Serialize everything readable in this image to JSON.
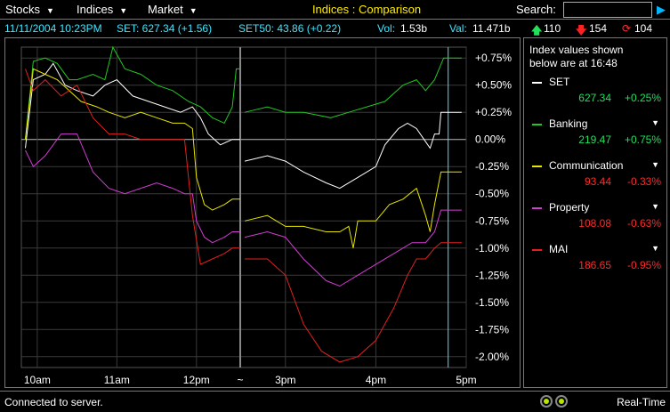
{
  "menubar": {
    "menus": [
      {
        "label": "Stocks"
      },
      {
        "label": "Indices"
      },
      {
        "label": "Market"
      }
    ],
    "title": "Indices : Comparison",
    "search_label": "Search:",
    "search_value": ""
  },
  "strip": {
    "datetime": "11/11/2004 10:23PM",
    "set": "SET: 627.34 (+1.56)",
    "set50": "SET50: 43.86 (+0.22)",
    "vol_label": "Vol:",
    "vol_value": "1.53b",
    "val_label": "Val:",
    "val_value": "11.471b",
    "advances": "110",
    "declines": "154",
    "unchanged": "104"
  },
  "panel": {
    "note_line1": "Index values shown",
    "note_line2": "below are at 16:48",
    "indices": [
      {
        "name": "SET",
        "value": "627.34",
        "change": "+0.25%",
        "color": "#ffffff",
        "value_color": "#21e05a",
        "has_dropdown": false
      },
      {
        "name": "Banking",
        "value": "219.47",
        "change": "+0.75%",
        "color": "#21c821",
        "value_color": "#21e05a",
        "has_dropdown": true
      },
      {
        "name": "Communication",
        "value": "93.44",
        "change": "-0.33%",
        "color": "#e6e600",
        "value_color": "#ff2a2a",
        "has_dropdown": true
      },
      {
        "name": "Property",
        "value": "108.08",
        "change": "-0.63%",
        "color": "#d23cd2",
        "value_color": "#ff2a2a",
        "has_dropdown": true
      },
      {
        "name": "MAI",
        "value": "186.65",
        "change": "-0.95%",
        "color": "#e02020",
        "value_color": "#ff2a2a",
        "has_dropdown": true
      }
    ]
  },
  "chart_data": {
    "type": "line",
    "title": "",
    "xlabel": "",
    "ylabel": "",
    "x_tick_labels": [
      "10am",
      "11am",
      "12pm",
      "~",
      "3pm",
      "3pm",
      "4pm",
      "5pm"
    ],
    "y_ticks": [
      0.75,
      0.5,
      0.25,
      0.0,
      -0.25,
      -0.5,
      -0.75,
      -1.0,
      -1.25,
      -1.5,
      -1.75,
      -2.0
    ],
    "y_tick_labels": [
      "+0.75%",
      "+0.50%",
      "+0.25%",
      "0.00%",
      "-0.25%",
      "-0.50%",
      "-0.75%",
      "-1.00%",
      "-1.25%",
      "-1.50%",
      "-1.75%",
      "-2.00%"
    ],
    "ylim": [
      -2.1,
      0.85
    ],
    "x_range_hours": [
      9.8,
      17.0
    ],
    "session_break_hour": 12.55,
    "session_resume_hour": 14.5,
    "grid": true,
    "series": [
      {
        "name": "SET",
        "color": "#ffffff",
        "points": [
          [
            9.85,
            -0.08
          ],
          [
            9.95,
            0.55
          ],
          [
            10.1,
            0.6
          ],
          [
            10.2,
            0.7
          ],
          [
            10.35,
            0.5
          ],
          [
            10.5,
            0.45
          ],
          [
            10.7,
            0.4
          ],
          [
            10.85,
            0.5
          ],
          [
            11.0,
            0.55
          ],
          [
            11.2,
            0.4
          ],
          [
            11.4,
            0.35
          ],
          [
            11.6,
            0.3
          ],
          [
            11.8,
            0.25
          ],
          [
            11.95,
            0.3
          ],
          [
            12.05,
            0.2
          ],
          [
            12.15,
            0.05
          ],
          [
            12.3,
            -0.05
          ],
          [
            12.45,
            0.0
          ],
          [
            12.55,
            0.0
          ],
          [
            14.55,
            -0.2
          ],
          [
            14.8,
            -0.15
          ],
          [
            15.0,
            -0.2
          ],
          [
            15.2,
            -0.3
          ],
          [
            15.45,
            -0.4
          ],
          [
            15.6,
            -0.45
          ],
          [
            15.8,
            -0.35
          ],
          [
            16.0,
            -0.25
          ],
          [
            16.1,
            -0.05
          ],
          [
            16.25,
            0.1
          ],
          [
            16.35,
            0.15
          ],
          [
            16.45,
            0.1
          ],
          [
            16.55,
            -0.02
          ],
          [
            16.6,
            -0.08
          ],
          [
            16.65,
            0.05
          ],
          [
            16.7,
            0.05
          ],
          [
            16.72,
            0.25
          ],
          [
            16.95,
            0.25
          ]
        ]
      },
      {
        "name": "Banking",
        "color": "#21c821",
        "points": [
          [
            9.85,
            0.0
          ],
          [
            9.95,
            0.72
          ],
          [
            10.1,
            0.75
          ],
          [
            10.25,
            0.7
          ],
          [
            10.4,
            0.55
          ],
          [
            10.5,
            0.55
          ],
          [
            10.7,
            0.6
          ],
          [
            10.85,
            0.55
          ],
          [
            10.95,
            0.85
          ],
          [
            11.1,
            0.65
          ],
          [
            11.3,
            0.6
          ],
          [
            11.5,
            0.5
          ],
          [
            11.7,
            0.45
          ],
          [
            11.9,
            0.35
          ],
          [
            12.05,
            0.3
          ],
          [
            12.2,
            0.2
          ],
          [
            12.35,
            0.15
          ],
          [
            12.45,
            0.3
          ],
          [
            12.5,
            0.65
          ],
          [
            12.55,
            0.65
          ],
          [
            14.55,
            0.25
          ],
          [
            14.8,
            0.3
          ],
          [
            15.0,
            0.25
          ],
          [
            15.2,
            0.25
          ],
          [
            15.5,
            0.2
          ],
          [
            15.7,
            0.25
          ],
          [
            15.9,
            0.3
          ],
          [
            16.1,
            0.35
          ],
          [
            16.3,
            0.5
          ],
          [
            16.45,
            0.55
          ],
          [
            16.55,
            0.45
          ],
          [
            16.65,
            0.55
          ],
          [
            16.75,
            0.75
          ],
          [
            16.95,
            0.75
          ]
        ]
      },
      {
        "name": "Communication",
        "color": "#e6e600",
        "points": [
          [
            9.85,
            0.0
          ],
          [
            9.95,
            0.65
          ],
          [
            10.1,
            0.6
          ],
          [
            10.25,
            0.55
          ],
          [
            10.4,
            0.45
          ],
          [
            10.55,
            0.35
          ],
          [
            10.75,
            0.3
          ],
          [
            10.9,
            0.25
          ],
          [
            11.1,
            0.2
          ],
          [
            11.3,
            0.25
          ],
          [
            11.5,
            0.2
          ],
          [
            11.7,
            0.15
          ],
          [
            11.85,
            0.15
          ],
          [
            11.95,
            0.1
          ],
          [
            12.0,
            -0.35
          ],
          [
            12.1,
            -0.6
          ],
          [
            12.2,
            -0.65
          ],
          [
            12.35,
            -0.6
          ],
          [
            12.45,
            -0.55
          ],
          [
            12.55,
            -0.55
          ],
          [
            14.55,
            -0.75
          ],
          [
            14.8,
            -0.7
          ],
          [
            15.0,
            -0.8
          ],
          [
            15.2,
            -0.8
          ],
          [
            15.45,
            -0.85
          ],
          [
            15.6,
            -0.85
          ],
          [
            15.7,
            -0.8
          ],
          [
            15.75,
            -1.0
          ],
          [
            15.8,
            -0.75
          ],
          [
            16.0,
            -0.75
          ],
          [
            16.15,
            -0.6
          ],
          [
            16.3,
            -0.55
          ],
          [
            16.45,
            -0.45
          ],
          [
            16.55,
            -0.7
          ],
          [
            16.6,
            -0.85
          ],
          [
            16.65,
            -0.6
          ],
          [
            16.72,
            -0.3
          ],
          [
            16.95,
            -0.3
          ]
        ]
      },
      {
        "name": "Property",
        "color": "#d23cd2",
        "points": [
          [
            9.85,
            -0.1
          ],
          [
            9.95,
            -0.25
          ],
          [
            10.1,
            -0.15
          ],
          [
            10.3,
            0.05
          ],
          [
            10.5,
            0.05
          ],
          [
            10.7,
            -0.3
          ],
          [
            10.9,
            -0.45
          ],
          [
            11.1,
            -0.5
          ],
          [
            11.3,
            -0.45
          ],
          [
            11.5,
            -0.4
          ],
          [
            11.7,
            -0.45
          ],
          [
            11.85,
            -0.5
          ],
          [
            11.95,
            -0.5
          ],
          [
            12.0,
            -0.75
          ],
          [
            12.1,
            -0.9
          ],
          [
            12.2,
            -0.95
          ],
          [
            12.35,
            -0.9
          ],
          [
            12.45,
            -0.85
          ],
          [
            12.55,
            -0.85
          ],
          [
            14.55,
            -0.9
          ],
          [
            14.8,
            -0.85
          ],
          [
            15.0,
            -0.9
          ],
          [
            15.2,
            -1.1
          ],
          [
            15.45,
            -1.3
          ],
          [
            15.6,
            -1.35
          ],
          [
            15.8,
            -1.25
          ],
          [
            16.0,
            -1.15
          ],
          [
            16.2,
            -1.05
          ],
          [
            16.4,
            -0.95
          ],
          [
            16.55,
            -0.95
          ],
          [
            16.65,
            -0.85
          ],
          [
            16.72,
            -0.65
          ],
          [
            16.95,
            -0.65
          ]
        ]
      },
      {
        "name": "MAI",
        "color": "#e02020",
        "points": [
          [
            9.85,
            0.65
          ],
          [
            9.95,
            0.45
          ],
          [
            10.1,
            0.55
          ],
          [
            10.3,
            0.4
          ],
          [
            10.5,
            0.5
          ],
          [
            10.7,
            0.2
          ],
          [
            10.9,
            0.05
          ],
          [
            11.1,
            0.05
          ],
          [
            11.3,
            0.0
          ],
          [
            11.5,
            0.0
          ],
          [
            11.7,
            0.0
          ],
          [
            11.85,
            0.0
          ],
          [
            11.95,
            -0.7
          ],
          [
            12.05,
            -1.15
          ],
          [
            12.2,
            -1.1
          ],
          [
            12.35,
            -1.05
          ],
          [
            12.45,
            -1.0
          ],
          [
            12.55,
            -1.0
          ],
          [
            14.55,
            -1.1
          ],
          [
            14.8,
            -1.1
          ],
          [
            15.0,
            -1.25
          ],
          [
            15.2,
            -1.7
          ],
          [
            15.4,
            -1.95
          ],
          [
            15.6,
            -2.05
          ],
          [
            15.8,
            -2.0
          ],
          [
            16.0,
            -1.85
          ],
          [
            16.2,
            -1.55
          ],
          [
            16.35,
            -1.25
          ],
          [
            16.45,
            -1.1
          ],
          [
            16.55,
            -1.1
          ],
          [
            16.65,
            -1.0
          ],
          [
            16.72,
            -0.95
          ],
          [
            16.95,
            -0.95
          ]
        ]
      }
    ]
  }
}
